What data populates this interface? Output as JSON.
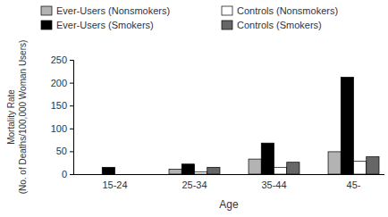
{
  "chart_data": {
    "type": "bar",
    "x_label": "Age",
    "y_label": [
      "Mortality Rate",
      "(No. of Deaths/100,000 Woman Users)"
    ],
    "categories": [
      "15-24",
      "25-34",
      "35-44",
      "45-"
    ],
    "series": [
      {
        "name": "Ever-Users (Nonsmokers)",
        "color": "#b3b3b3",
        "values": [
          0,
          11,
          33,
          49
        ]
      },
      {
        "name": "Ever-Users (Smokers)",
        "color": "#000000",
        "values": [
          15,
          22,
          68,
          212
        ]
      },
      {
        "name": "Controls (Nonsmokers)",
        "color": "#ffffff",
        "values": [
          0,
          5,
          15,
          28
        ]
      },
      {
        "name": "Controls (Smokers)",
        "color": "#666666",
        "values": [
          0,
          15,
          26,
          38
        ]
      }
    ],
    "ylim": [
      0,
      250
    ],
    "yticks": [
      0,
      50,
      100,
      150,
      200,
      250
    ],
    "grid": false,
    "legend": "top"
  }
}
